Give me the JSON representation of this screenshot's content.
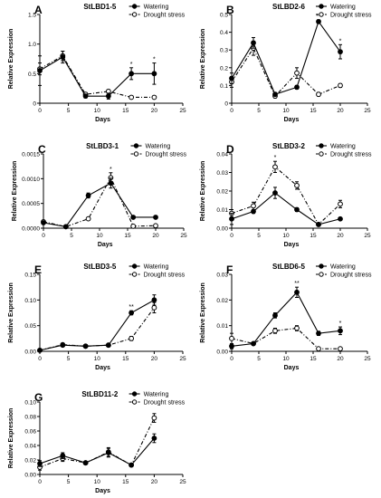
{
  "figure": {
    "legend": {
      "watering": "Watering",
      "drought": "Drought stress"
    }
  },
  "chart_data": [
    {
      "type": "line",
      "panel": "A",
      "title": "StLBD1-5",
      "xlabel": "Days",
      "ylabel": "Relative Expression",
      "xlim": [
        0,
        25
      ],
      "ylim": [
        0,
        1.5
      ],
      "xticks": [
        0,
        5,
        10,
        15,
        20,
        25
      ],
      "yticks": [
        0,
        0.5,
        1.0,
        1.5
      ],
      "ytick_labels": [
        "0",
        "0.5",
        "1.0",
        "1.5"
      ],
      "x": [
        0,
        4,
        8,
        12,
        16,
        20
      ],
      "series": [
        {
          "name": "Watering",
          "values": [
            0.55,
            0.78,
            0.12,
            0.12,
            0.5,
            0.5
          ],
          "errors": [
            0.25,
            0.1,
            0.03,
            0.05,
            0.1,
            0.18
          ]
        },
        {
          "name": "Drought stress",
          "values": [
            0.58,
            0.8,
            0.15,
            0.2,
            0.1,
            0.1
          ],
          "errors": [
            0.1,
            0.08,
            0.03,
            0.03,
            0.02,
            0.02
          ]
        }
      ],
      "annotations": [
        {
          "x": 16,
          "label": "*"
        },
        {
          "x": 20,
          "label": "*"
        }
      ],
      "legend_position": "top-right"
    },
    {
      "type": "line",
      "panel": "B",
      "title": "StLBD2-6",
      "xlabel": "Days",
      "ylabel": "Relative Expression",
      "xlim": [
        0,
        25
      ],
      "ylim": [
        0,
        0.5
      ],
      "xticks": [
        0,
        5,
        10,
        15,
        20,
        25
      ],
      "yticks": [
        0,
        0.1,
        0.2,
        0.3,
        0.4,
        0.5
      ],
      "ytick_labels": [
        "0",
        "0.1",
        "0.2",
        "0.3",
        "0.4",
        "0.5"
      ],
      "x": [
        0,
        4,
        8,
        12,
        16,
        20
      ],
      "series": [
        {
          "name": "Watering",
          "values": [
            0.14,
            0.34,
            0.05,
            0.09,
            0.46,
            0.29
          ],
          "errors": [
            0.03,
            0.03,
            0.01,
            0.01,
            0.01,
            0.04
          ]
        },
        {
          "name": "Drought stress",
          "values": [
            0.12,
            0.31,
            0.04,
            0.17,
            0.05,
            0.1
          ],
          "errors": [
            0.03,
            0.04,
            0.01,
            0.03,
            0.01,
            0.01
          ]
        }
      ],
      "annotations": [
        {
          "x": 16,
          "label": "**"
        },
        {
          "x": 20,
          "label": "*"
        }
      ],
      "legend_position": "top-right"
    },
    {
      "type": "line",
      "panel": "C",
      "title": "StLBD3-1",
      "xlabel": "Days",
      "ylabel": "Relative Expression",
      "xlim": [
        0,
        25
      ],
      "ylim": [
        0,
        0.0015
      ],
      "xticks": [
        0,
        5,
        10,
        15,
        20,
        25
      ],
      "yticks": [
        0,
        0.0005,
        0.001,
        0.0015
      ],
      "ytick_labels": [
        "0.0000",
        "0.0005",
        "0.0010",
        "0.0015"
      ],
      "x": [
        0,
        4,
        8,
        12,
        16,
        20
      ],
      "series": [
        {
          "name": "Watering",
          "values": [
            0.00011,
            3e-05,
            0.00066,
            0.00091,
            0.00022,
            0.00022
          ],
          "errors": [
            3e-05,
            1e-05,
            5e-05,
            0.0001,
            2e-05,
            2e-05
          ]
        },
        {
          "name": "Drought stress",
          "values": [
            0.00013,
            3e-05,
            0.00019,
            0.00102,
            4e-05,
            5e-05
          ],
          "errors": [
            3e-05,
            1e-05,
            3e-05,
            0.0001,
            1e-05,
            1e-05
          ]
        }
      ],
      "annotations": [
        {
          "x": 12,
          "label": "*"
        }
      ],
      "legend_position": "top-right"
    },
    {
      "type": "line",
      "panel": "D",
      "title": "StLBD3-2",
      "xlabel": "Days",
      "ylabel": "Relative Expression",
      "xlim": [
        0,
        25
      ],
      "ylim": [
        0,
        0.04
      ],
      "xticks": [
        0,
        5,
        10,
        15,
        20,
        25
      ],
      "yticks": [
        0,
        0.01,
        0.02,
        0.03,
        0.04
      ],
      "ytick_labels": [
        "0.00",
        "0.01",
        "0.02",
        "0.03",
        "0.04"
      ],
      "x": [
        0,
        4,
        8,
        12,
        16,
        20
      ],
      "series": [
        {
          "name": "Watering",
          "values": [
            0.005,
            0.009,
            0.019,
            0.01,
            0.002,
            0.005
          ],
          "errors": [
            0.003,
            0.001,
            0.003,
            0.001,
            0.0005,
            0.0005
          ]
        },
        {
          "name": "Drought stress",
          "values": [
            0.008,
            0.012,
            0.033,
            0.023,
            0.002,
            0.013
          ],
          "errors": [
            0.002,
            0.002,
            0.003,
            0.002,
            0.0005,
            0.002
          ]
        }
      ],
      "annotations": [
        {
          "x": 8,
          "label": "*"
        }
      ],
      "legend_position": "top-right"
    },
    {
      "type": "line",
      "panel": "E",
      "title": "StLBD3-5",
      "xlabel": "Days",
      "ylabel": "Relative Expression",
      "xlim": [
        0,
        25
      ],
      "ylim": [
        0,
        0.15
      ],
      "xticks": [
        0,
        5,
        10,
        15,
        20,
        25
      ],
      "yticks": [
        0,
        0.05,
        0.1,
        0.15
      ],
      "ytick_labels": [
        "0.00",
        "0.05",
        "0.10",
        "0.15"
      ],
      "x": [
        0,
        4,
        8,
        12,
        16,
        20
      ],
      "series": [
        {
          "name": "Watering",
          "values": [
            0.002,
            0.012,
            0.01,
            0.012,
            0.075,
            0.1
          ],
          "errors": [
            0.001,
            0.002,
            0.002,
            0.002,
            0.004,
            0.01
          ]
        },
        {
          "name": "Drought stress",
          "values": [
            0.002,
            0.013,
            0.01,
            0.012,
            0.025,
            0.085
          ],
          "errors": [
            0.001,
            0.002,
            0.002,
            0.002,
            0.004,
            0.01
          ]
        }
      ],
      "annotations": [
        {
          "x": 16,
          "label": "**"
        }
      ],
      "legend_position": "top-right"
    },
    {
      "type": "line",
      "panel": "F",
      "title": "StLBD6-5",
      "xlabel": "Days",
      "ylabel": "Relative Expression",
      "xlim": [
        0,
        25
      ],
      "ylim": [
        0,
        0.03
      ],
      "xticks": [
        0,
        5,
        10,
        15,
        20,
        25
      ],
      "yticks": [
        0,
        0.01,
        0.02,
        0.03
      ],
      "ytick_labels": [
        "0.00",
        "0.01",
        "0.02",
        "0.03"
      ],
      "x": [
        0,
        4,
        8,
        12,
        16,
        20
      ],
      "series": [
        {
          "name": "Watering",
          "values": [
            0.002,
            0.003,
            0.014,
            0.023,
            0.007,
            0.008
          ],
          "errors": [
            0.001,
            0.0005,
            0.001,
            0.002,
            0.0008,
            0.0015
          ]
        },
        {
          "name": "Drought stress",
          "values": [
            0.005,
            0.003,
            0.008,
            0.009,
            0.001,
            0.001
          ],
          "errors": [
            0.002,
            0.0005,
            0.001,
            0.001,
            0.0003,
            0.0003
          ]
        }
      ],
      "annotations": [
        {
          "x": 12,
          "label": "**"
        },
        {
          "x": 20,
          "label": "*"
        }
      ],
      "legend_position": "top-right"
    },
    {
      "type": "line",
      "panel": "G",
      "title": "StLBD11-2",
      "xlabel": "Days",
      "ylabel": "Relative Expression",
      "xlim": [
        0,
        25
      ],
      "ylim": [
        0,
        0.1
      ],
      "xticks": [
        0,
        5,
        10,
        15,
        20,
        25
      ],
      "yticks": [
        0,
        0.02,
        0.04,
        0.06,
        0.08,
        0.1
      ],
      "ytick_labels": [
        "0.00",
        "0.02",
        "0.04",
        "0.06",
        "0.08",
        "0.10"
      ],
      "x": [
        0,
        4,
        8,
        12,
        16,
        20
      ],
      "series": [
        {
          "name": "Watering",
          "values": [
            0.015,
            0.026,
            0.016,
            0.03,
            0.013,
            0.05
          ],
          "errors": [
            0.004,
            0.004,
            0.002,
            0.006,
            0.002,
            0.006
          ]
        },
        {
          "name": "Drought stress",
          "values": [
            0.01,
            0.022,
            0.016,
            0.031,
            0.013,
            0.078
          ],
          "errors": [
            0.004,
            0.004,
            0.002,
            0.006,
            0.002,
            0.006
          ]
        }
      ],
      "annotations": [],
      "legend_position": "top-right"
    }
  ]
}
